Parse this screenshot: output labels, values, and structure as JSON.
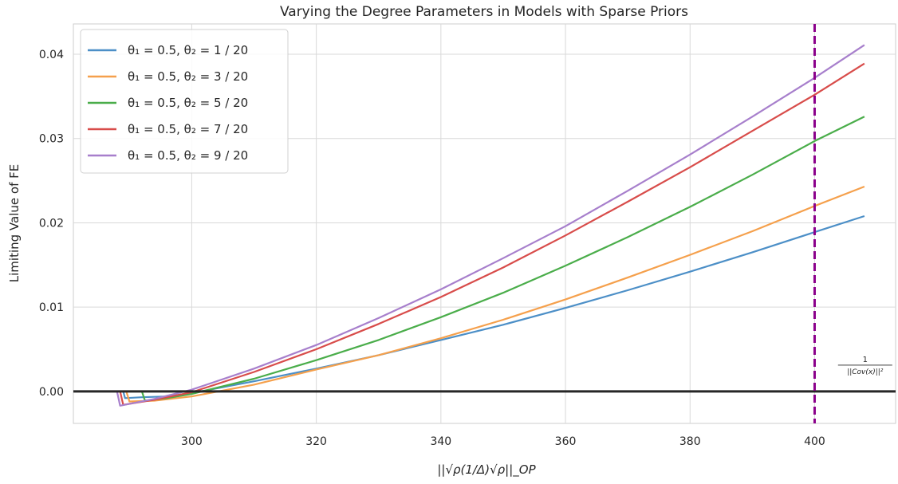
{
  "chart_data": {
    "type": "line",
    "title": "Varying the Degree Parameters in Models with Sparse Priors",
    "xlabel": "||√ρ(1/Δ)√ρ||_OP",
    "ylabel": "Limiting Value of FE",
    "xlim": [
      281,
      413
    ],
    "ylim": [
      -0.0038,
      0.0436
    ],
    "xticks": [
      300,
      320,
      340,
      360,
      380,
      400
    ],
    "xtick_labels": [
      "300",
      "320",
      "340",
      "360",
      "380",
      "400"
    ],
    "yticks": [
      0.0,
      0.01,
      0.02,
      0.03,
      0.04
    ],
    "ytick_labels": [
      "0.00",
      "0.01",
      "0.02",
      "0.03",
      "0.04"
    ],
    "grid": true,
    "legend_position": "top-left",
    "hline": {
      "y": 0.0,
      "color": "#262626"
    },
    "vline": {
      "x": 400,
      "color": "#8b008b",
      "style": "dashed"
    },
    "annotation": {
      "numerator": "1",
      "denominator": "||Cov(x)||²",
      "x": 403.5,
      "y": 0.0033
    },
    "series": [
      {
        "name": "θ₁ = 0.5, θ₂ = 1 / 20",
        "color": "#4c8fc7",
        "x": [
          286.5,
          289,
          289.3,
          292,
          296,
          300,
          310,
          320,
          330,
          340,
          350,
          360,
          370,
          380,
          390,
          400,
          408
        ],
        "y": [
          0.0,
          0.0,
          -0.0008,
          -0.0007,
          -0.0006,
          -0.0002,
          0.0012,
          0.0027,
          0.0043,
          0.0061,
          0.0079,
          0.0099,
          0.012,
          0.0142,
          0.0165,
          0.0189,
          0.0208
        ]
      },
      {
        "name": "θ₁ = 0.5, θ₂ = 3 / 20",
        "color": "#f5a04c",
        "x": [
          287,
          289.5,
          290,
          294,
          300,
          310,
          320,
          330,
          340,
          350,
          360,
          370,
          380,
          390,
          400,
          408
        ],
        "y": [
          0.0,
          0.0,
          -0.0012,
          -0.0011,
          -0.0006,
          0.0008,
          0.0026,
          0.0043,
          0.0063,
          0.0085,
          0.0109,
          0.0135,
          0.0162,
          0.019,
          0.022,
          0.0243
        ]
      },
      {
        "name": "θ₁ = 0.5, θ₂ = 5 / 20",
        "color": "#4aad4a",
        "x": [
          287.5,
          292,
          292.5,
          296,
          300,
          310,
          320,
          330,
          340,
          350,
          360,
          370,
          380,
          390,
          400,
          408
        ],
        "y": [
          0.0,
          0.0,
          -0.0011,
          -0.0008,
          -0.0003,
          0.0015,
          0.0037,
          0.0061,
          0.0088,
          0.0117,
          0.0149,
          0.0183,
          0.0219,
          0.0257,
          0.0297,
          0.0326
        ]
      },
      {
        "name": "θ₁ = 0.5, θ₂ = 7 / 20",
        "color": "#d84c4a",
        "x": [
          287,
          288.5,
          289,
          294,
          300,
          310,
          320,
          330,
          340,
          350,
          360,
          370,
          380,
          390,
          400,
          408
        ],
        "y": [
          0.0,
          0.0,
          -0.0016,
          -0.001,
          -0.0001,
          0.0023,
          0.005,
          0.008,
          0.0112,
          0.0147,
          0.0185,
          0.0225,
          0.0266,
          0.0309,
          0.0352,
          0.0389
        ]
      },
      {
        "name": "θ₁ = 0.5, θ₂ = 9 / 20",
        "color": "#a77fcc",
        "x": [
          286.5,
          288,
          288.5,
          294,
          300,
          310,
          320,
          330,
          340,
          350,
          360,
          370,
          380,
          390,
          400,
          408
        ],
        "y": [
          0.0,
          0.0,
          -0.0017,
          -0.0009,
          0.0002,
          0.0027,
          0.0055,
          0.0087,
          0.0121,
          0.0158,
          0.0196,
          0.0238,
          0.0281,
          0.0326,
          0.0372,
          0.0411
        ]
      }
    ]
  }
}
